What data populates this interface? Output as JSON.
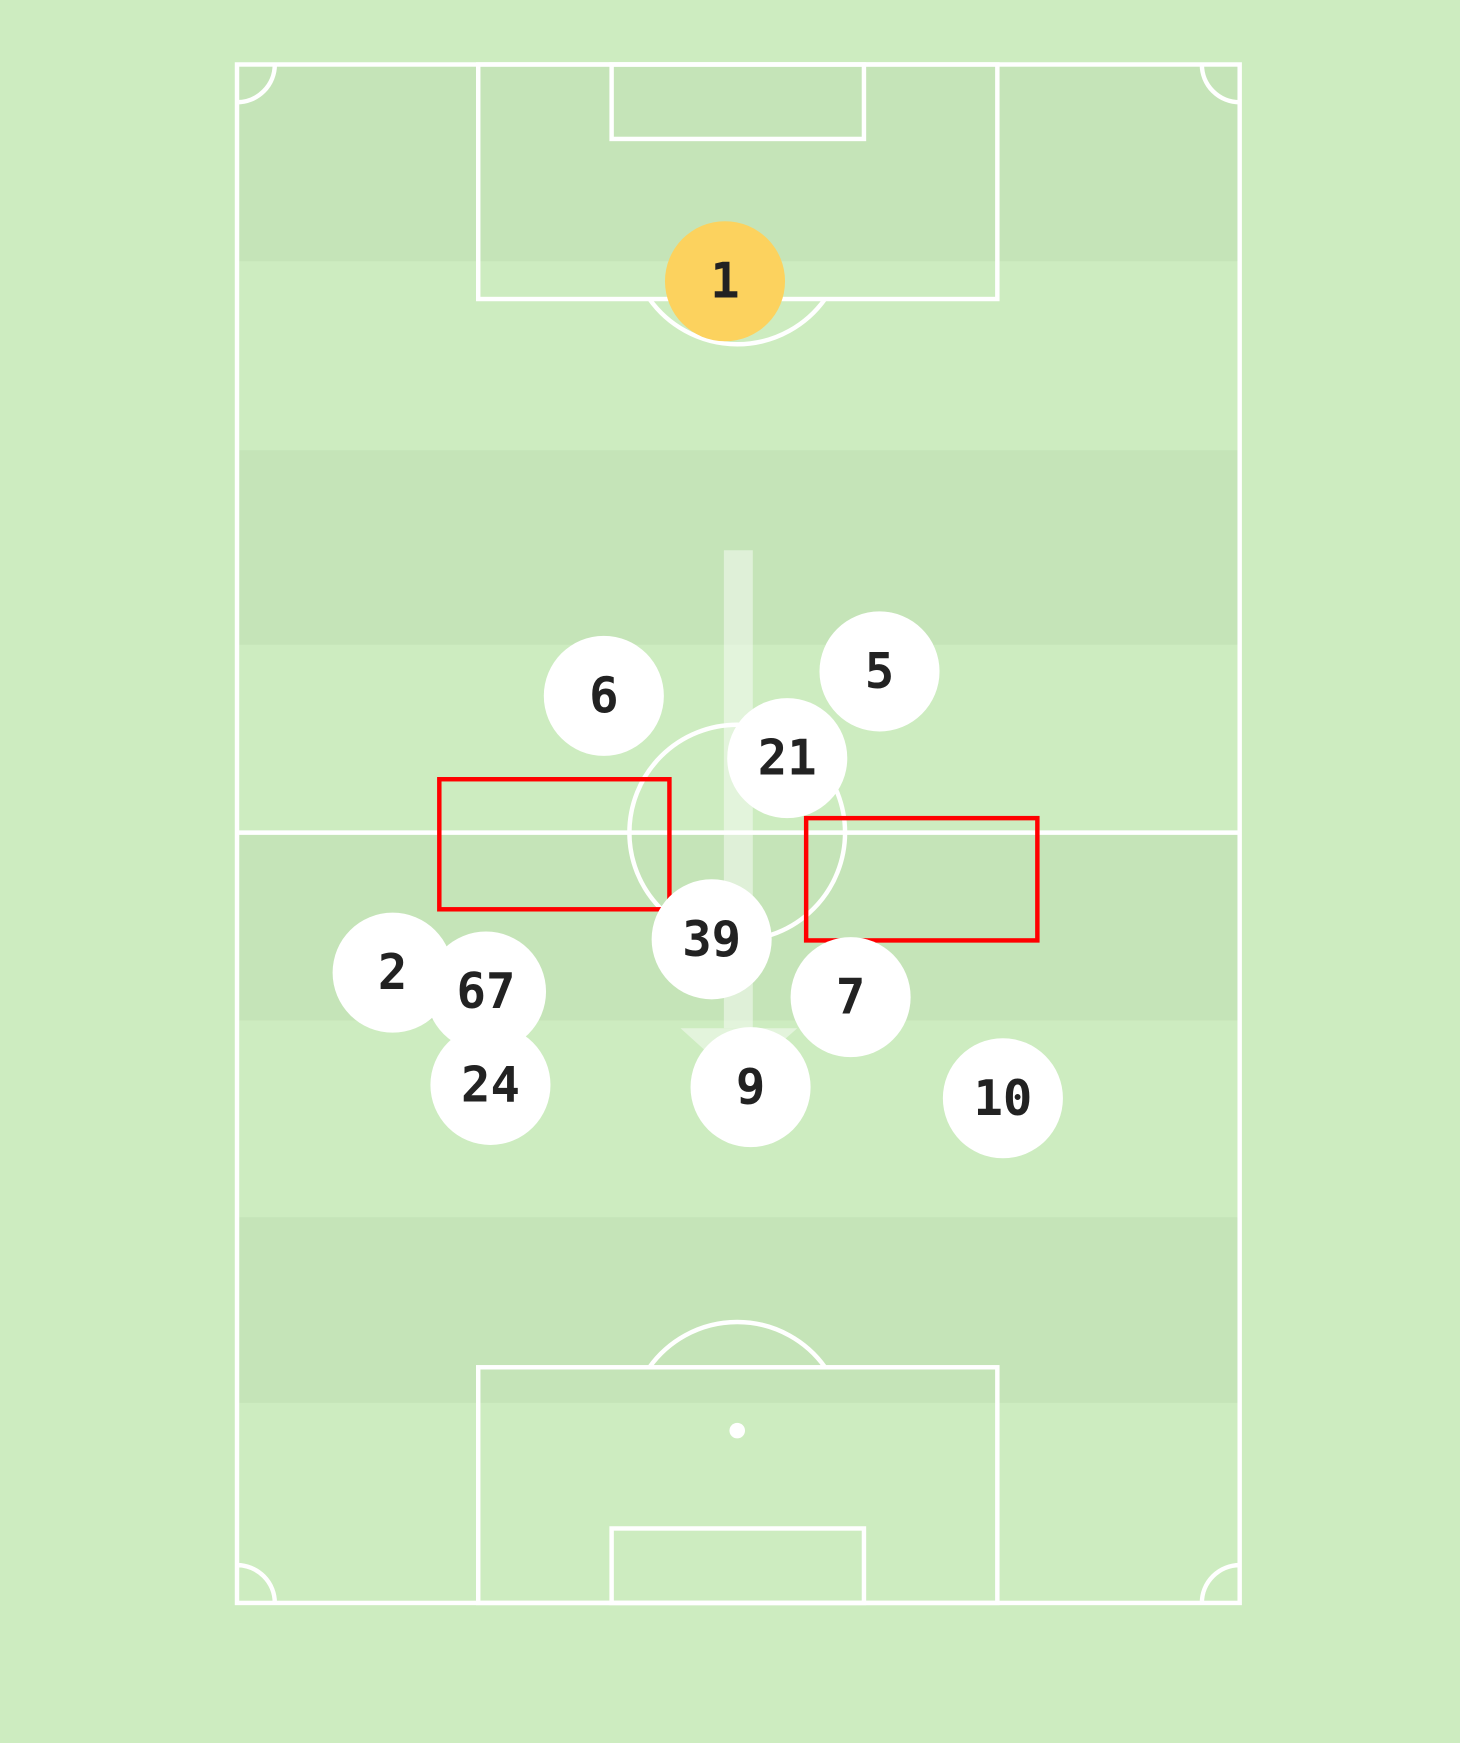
{
  "colors": {
    "grass": "#cdecc0",
    "stripe": "#c5e4b8",
    "lines": "#ffffff",
    "goalkeeper": "#fcd25e",
    "player": "#ffffff",
    "highlight": "#ff0000"
  },
  "players": [
    {
      "number": "1",
      "role": "goalkeeper"
    },
    {
      "number": "6",
      "role": "outfield"
    },
    {
      "number": "5",
      "role": "outfield"
    },
    {
      "number": "21",
      "role": "outfield"
    },
    {
      "number": "39",
      "role": "outfield"
    },
    {
      "number": "2",
      "role": "outfield"
    },
    {
      "number": "67",
      "role": "outfield"
    },
    {
      "number": "24",
      "role": "outfield"
    },
    {
      "number": "9",
      "role": "outfield"
    },
    {
      "number": "7",
      "role": "outfield"
    },
    {
      "number": "10",
      "role": "outfield"
    }
  ],
  "highlight_zones": 2,
  "arrow": {
    "direction": "down"
  }
}
